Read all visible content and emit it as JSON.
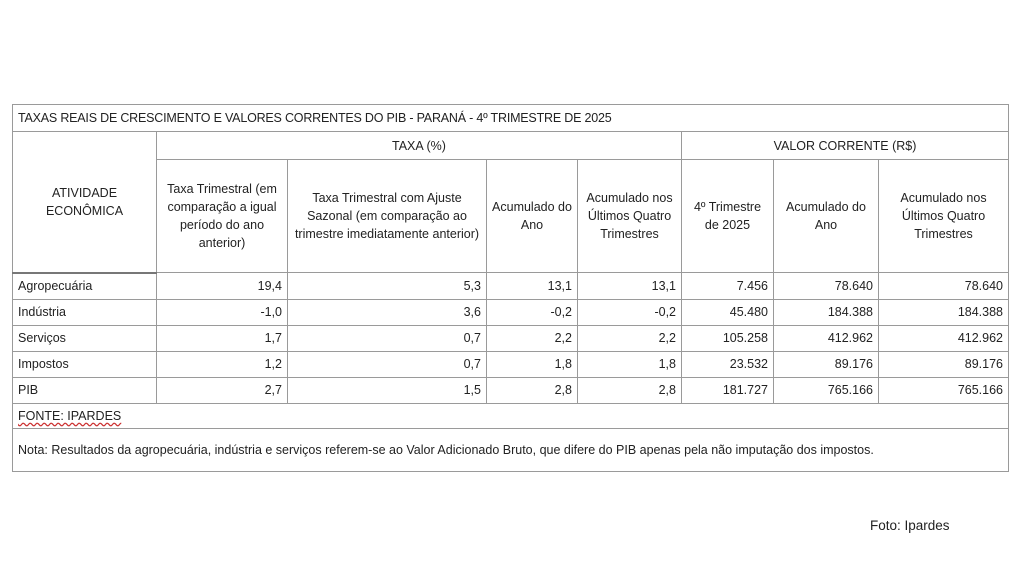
{
  "table": {
    "title": "TAXAS REAIS DE CRESCIMENTO E VALORES CORRENTES DO PIB - PARANÁ - 4º TRIMESTRE DE 2025",
    "group_headers": {
      "activity": "ATIVIDADE ECONÔMICA",
      "taxa": "TAXA (%)",
      "valor": "VALOR CORRENTE (R$)"
    },
    "columns": [
      "Taxa Trimestral (em comparação a igual período do ano anterior)",
      "Taxa Trimestral com Ajuste Sazonal (em comparação ao trimestre imediatamente anterior)",
      "Acumulado do Ano",
      "Acumulado nos Últimos Quatro Trimestres",
      "4º Trimestre de 2025",
      "Acumulado do Ano",
      "Acumulado nos Últimos Quatro Trimestres"
    ],
    "rows": [
      {
        "label": "Agropecuária",
        "values": [
          "19,4",
          "5,3",
          "13,1",
          "13,1",
          "7.456",
          "78.640",
          "78.640"
        ]
      },
      {
        "label": "Indústria",
        "values": [
          "-1,0",
          "3,6",
          "-0,2",
          "-0,2",
          "45.480",
          "184.388",
          "184.388"
        ]
      },
      {
        "label": "Serviços",
        "values": [
          "1,7",
          "0,7",
          "2,2",
          "2,2",
          "105.258",
          "412.962",
          "412.962"
        ]
      },
      {
        "label": "Impostos",
        "values": [
          "1,2",
          "0,7",
          "1,8",
          "1,8",
          "23.532",
          "89.176",
          "89.176"
        ]
      },
      {
        "label": "PIB",
        "values": [
          "2,7",
          "1,5",
          "2,8",
          "2,8",
          "181.727",
          "765.166",
          "765.166"
        ]
      }
    ],
    "source": "FONTE: IPARDES",
    "note": "Nota: Resultados da agropecuária, indústria e serviços referem-se ao Valor Adicionado Bruto, que difere do PIB apenas pela não imputação dos impostos."
  },
  "credit": "Foto: Ipardes"
}
